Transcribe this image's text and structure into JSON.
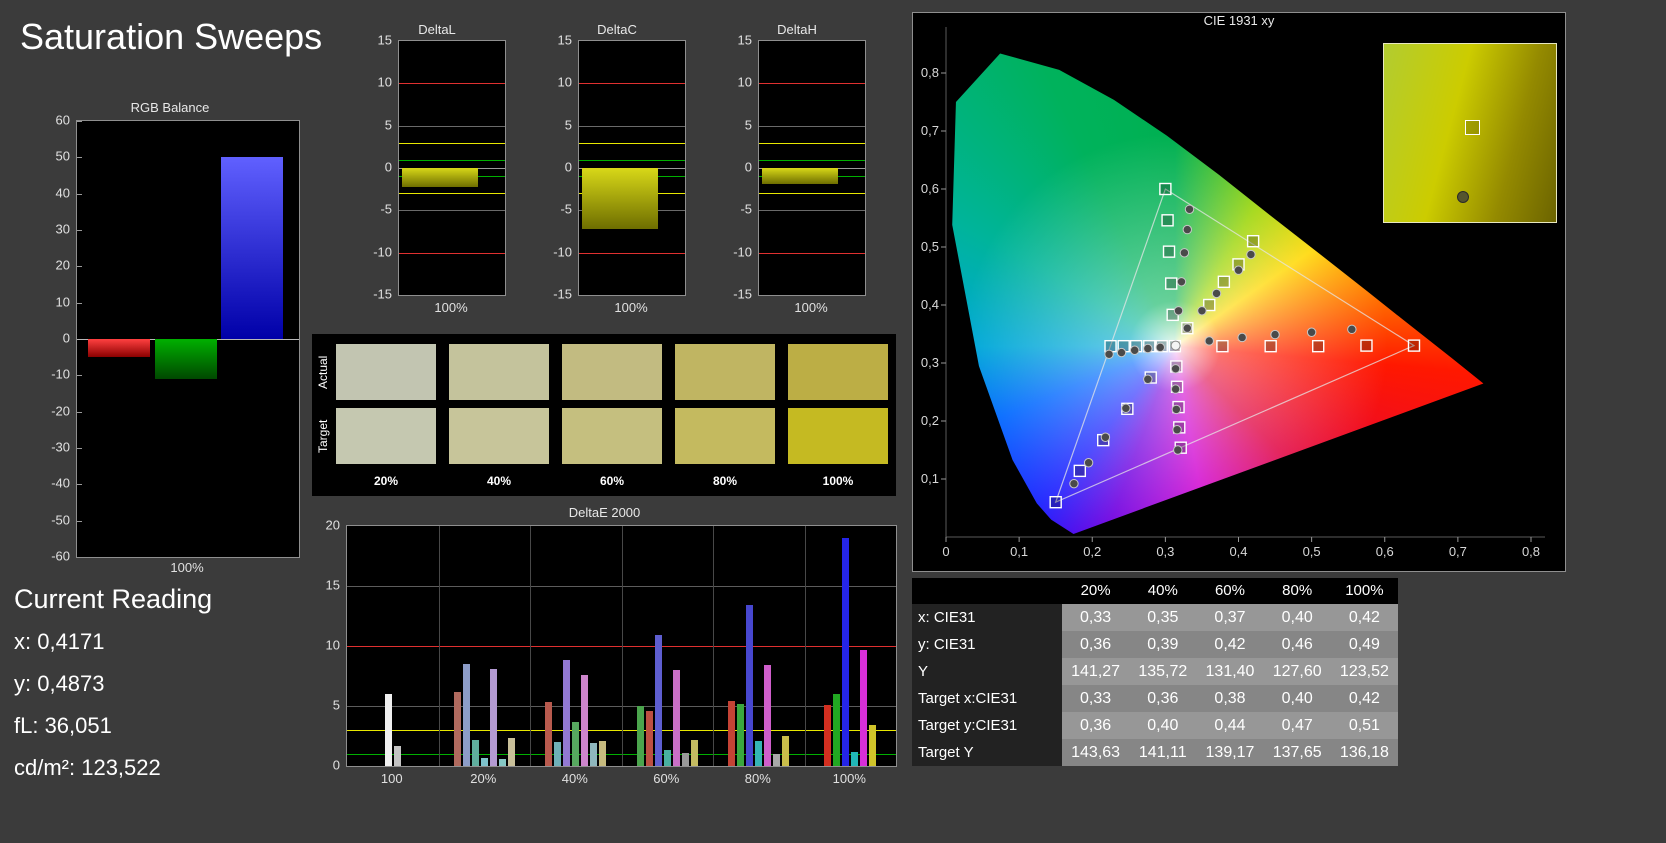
{
  "page_title": "Saturation Sweeps",
  "rgb_balance": {
    "title": "RGB Balance",
    "x_label": "100%",
    "ylim": [
      -60,
      60
    ],
    "y_ticks": [
      60,
      50,
      40,
      30,
      20,
      10,
      0,
      -10,
      -20,
      -30,
      -40,
      -50,
      -60
    ],
    "bars": [
      {
        "name": "red",
        "value": -5,
        "color_top": "#ff4040",
        "color_bottom": "#8a0000"
      },
      {
        "name": "green",
        "value": -11,
        "color_top": "#00b000",
        "color_bottom": "#004800"
      },
      {
        "name": "blue",
        "value": 50,
        "color_top": "#6060ff",
        "color_bottom": "#0000a8"
      }
    ]
  },
  "delta_charts": {
    "ylim": [
      -15,
      15
    ],
    "y_ticks": [
      15,
      10,
      5,
      0,
      -5,
      -10,
      -15
    ],
    "ref_lines": [
      {
        "value": 10,
        "color": "#e03030"
      },
      {
        "value": 3,
        "color": "#e8e800"
      },
      {
        "value": 1,
        "color": "#00b000"
      }
    ],
    "bar_color_top": "#d8d818",
    "bar_color_bottom": "#6e6e00",
    "charts": [
      {
        "title": "DeltaL",
        "x_label": "100%",
        "value": -2.3
      },
      {
        "title": "DeltaC",
        "x_label": "100%",
        "value": -7.2
      },
      {
        "title": "DeltaH",
        "x_label": "100%",
        "value": -1.9
      }
    ]
  },
  "swatches": {
    "row_labels": [
      "Actual",
      "Target"
    ],
    "levels": [
      "20%",
      "40%",
      "60%",
      "80%",
      "100%"
    ],
    "actual": [
      "#c2c5b1",
      "#c4c39c",
      "#c2bb81",
      "#c0b562",
      "#bcae45"
    ],
    "target": [
      "#c5c8b0",
      "#c7c59a",
      "#c5bf7f",
      "#c4ba5f",
      "#c5ba22"
    ]
  },
  "deltae_chart": {
    "title": "DeltaE 2000",
    "ylim": [
      0,
      20
    ],
    "y_ticks": [
      20,
      15,
      10,
      5,
      0
    ],
    "ref_lines": [
      {
        "value": 10,
        "color": "#e03030"
      },
      {
        "value": 3,
        "color": "#e8e800"
      },
      {
        "value": 1,
        "color": "#00b000"
      }
    ],
    "groups": [
      {
        "label": "100",
        "bars": [
          {
            "color": "#f0f0f0",
            "value": 6.0
          },
          {
            "color": "#c4c4c4",
            "value": 1.7
          }
        ]
      },
      {
        "label": "20%",
        "bars": [
          {
            "color": "#b06a5e",
            "value": 6.2
          },
          {
            "color": "#8d9dc8",
            "value": 8.5
          },
          {
            "color": "#5fae9e",
            "value": 2.2
          },
          {
            "color": "#7ec2cb",
            "value": 0.7
          },
          {
            "color": "#b39ad2",
            "value": 8.1
          },
          {
            "color": "#86c8c4",
            "value": 0.6
          },
          {
            "color": "#c9c09a",
            "value": 2.3
          }
        ]
      },
      {
        "label": "40%",
        "bars": [
          {
            "color": "#b85a4e",
            "value": 5.3
          },
          {
            "color": "#6fb0b8",
            "value": 2.0
          },
          {
            "color": "#9279d3",
            "value": 8.8
          },
          {
            "color": "#57a85f",
            "value": 3.7
          },
          {
            "color": "#cd85cc",
            "value": 7.6
          },
          {
            "color": "#8fb7bd",
            "value": 1.9
          },
          {
            "color": "#c6ba7e",
            "value": 2.1
          }
        ]
      },
      {
        "label": "60%",
        "bars": [
          {
            "color": "#4ba54d",
            "value": 5.0
          },
          {
            "color": "#bd4f42",
            "value": 4.6
          },
          {
            "color": "#5e5ed0",
            "value": 10.9
          },
          {
            "color": "#49b0a0",
            "value": 1.3
          },
          {
            "color": "#c96fc6",
            "value": 8.0
          },
          {
            "color": "#9a9a9a",
            "value": 1.1
          },
          {
            "color": "#c5bc62",
            "value": 2.2
          }
        ]
      },
      {
        "label": "80%",
        "bars": [
          {
            "color": "#c44335",
            "value": 5.4
          },
          {
            "color": "#3aa83e",
            "value": 5.2
          },
          {
            "color": "#4747cf",
            "value": 13.4
          },
          {
            "color": "#35b5b5",
            "value": 2.1
          },
          {
            "color": "#cf5ecb",
            "value": 8.4
          },
          {
            "color": "#a8a8a8",
            "value": 1.0
          },
          {
            "color": "#c9bd4a",
            "value": 2.5
          }
        ]
      },
      {
        "label": "100%",
        "bars": [
          {
            "color": "#d32f20",
            "value": 5.1
          },
          {
            "color": "#22a822",
            "value": 6.0
          },
          {
            "color": "#2525e8",
            "value": 19.0
          },
          {
            "color": "#21b8b8",
            "value": 1.2
          },
          {
            "color": "#d82fd8",
            "value": 9.7
          },
          {
            "color": "#d0c42a",
            "value": 3.4
          }
        ]
      }
    ]
  },
  "cie": {
    "title": "CIE 1931 xy",
    "x_ticks": [
      "0",
      "0,1",
      "0,2",
      "0,3",
      "0,4",
      "0,5",
      "0,6",
      "0,7",
      "0,8"
    ],
    "y_ticks": [
      "0,1",
      "0,2",
      "0,3",
      "0,4",
      "0,5",
      "0,6",
      "0,7",
      "0,8"
    ],
    "triangle": [
      [
        0.64,
        0.33
      ],
      [
        0.3,
        0.6
      ],
      [
        0.15,
        0.06
      ]
    ],
    "white_point": {
      "target": [
        0.313,
        0.329
      ],
      "measured": [
        0.314,
        0.33
      ]
    },
    "sweeps": [
      {
        "name": "red",
        "targets": [
          [
            0.378,
            0.329
          ],
          [
            0.444,
            0.329
          ],
          [
            0.509,
            0.329
          ],
          [
            0.575,
            0.33
          ],
          [
            0.64,
            0.33
          ]
        ],
        "measured": [
          [
            0.36,
            0.338
          ],
          [
            0.405,
            0.344
          ],
          [
            0.45,
            0.349
          ],
          [
            0.5,
            0.353
          ],
          [
            0.555,
            0.358
          ]
        ]
      },
      {
        "name": "green",
        "targets": [
          [
            0.31,
            0.383
          ],
          [
            0.308,
            0.437
          ],
          [
            0.305,
            0.492
          ],
          [
            0.303,
            0.546
          ],
          [
            0.3,
            0.6
          ]
        ],
        "measured": [
          [
            0.318,
            0.39
          ],
          [
            0.322,
            0.44
          ],
          [
            0.326,
            0.49
          ],
          [
            0.33,
            0.53
          ],
          [
            0.333,
            0.565
          ]
        ]
      },
      {
        "name": "blue",
        "targets": [
          [
            0.28,
            0.275
          ],
          [
            0.248,
            0.221
          ],
          [
            0.215,
            0.167
          ],
          [
            0.183,
            0.114
          ],
          [
            0.15,
            0.06
          ]
        ],
        "measured": [
          [
            0.276,
            0.272
          ],
          [
            0.246,
            0.222
          ],
          [
            0.218,
            0.172
          ],
          [
            0.195,
            0.128
          ],
          [
            0.175,
            0.092
          ]
        ]
      },
      {
        "name": "cyan",
        "targets": [
          [
            0.295,
            0.329
          ],
          [
            0.278,
            0.329
          ],
          [
            0.26,
            0.329
          ],
          [
            0.243,
            0.329
          ],
          [
            0.225,
            0.329
          ]
        ],
        "measured": [
          [
            0.293,
            0.327
          ],
          [
            0.276,
            0.325
          ],
          [
            0.258,
            0.322
          ],
          [
            0.24,
            0.318
          ],
          [
            0.223,
            0.315
          ]
        ]
      },
      {
        "name": "magenta",
        "targets": [
          [
            0.315,
            0.294
          ],
          [
            0.316,
            0.259
          ],
          [
            0.318,
            0.224
          ],
          [
            0.319,
            0.189
          ],
          [
            0.321,
            0.154
          ]
        ],
        "measured": [
          [
            0.314,
            0.29
          ],
          [
            0.314,
            0.255
          ],
          [
            0.315,
            0.22
          ],
          [
            0.316,
            0.185
          ],
          [
            0.317,
            0.15
          ]
        ]
      },
      {
        "name": "yellow",
        "targets": [
          [
            0.33,
            0.36
          ],
          [
            0.36,
            0.4
          ],
          [
            0.38,
            0.44
          ],
          [
            0.4,
            0.47
          ],
          [
            0.42,
            0.51
          ]
        ],
        "measured": [
          [
            0.33,
            0.36
          ],
          [
            0.35,
            0.39
          ],
          [
            0.37,
            0.42
          ],
          [
            0.4,
            0.46
          ],
          [
            0.417,
            0.487
          ]
        ]
      }
    ],
    "inset": {
      "square": [
        0.52,
        0.47
      ],
      "circle": [
        0.46,
        0.86
      ]
    }
  },
  "current_reading": {
    "title": "Current Reading",
    "lines": [
      "x: 0,4171",
      "y: 0,4873",
      "fL: 36,051",
      "cd/m²: 123,522"
    ]
  },
  "table": {
    "columns": [
      "20%",
      "40%",
      "60%",
      "80%",
      "100%"
    ],
    "rows": [
      {
        "label": "x: CIE31",
        "values": [
          "0,33",
          "0,35",
          "0,37",
          "0,40",
          "0,42"
        ]
      },
      {
        "label": "y: CIE31",
        "values": [
          "0,36",
          "0,39",
          "0,42",
          "0,46",
          "0,49"
        ]
      },
      {
        "label": "Y",
        "values": [
          "141,27",
          "135,72",
          "131,40",
          "127,60",
          "123,52"
        ]
      },
      {
        "label": "Target x:CIE31",
        "values": [
          "0,33",
          "0,36",
          "0,38",
          "0,40",
          "0,42"
        ]
      },
      {
        "label": "Target y:CIE31",
        "values": [
          "0,36",
          "0,40",
          "0,44",
          "0,47",
          "0,51"
        ]
      },
      {
        "label": "Target Y",
        "values": [
          "143,63",
          "141,11",
          "139,17",
          "137,65",
          "136,18"
        ]
      }
    ]
  }
}
